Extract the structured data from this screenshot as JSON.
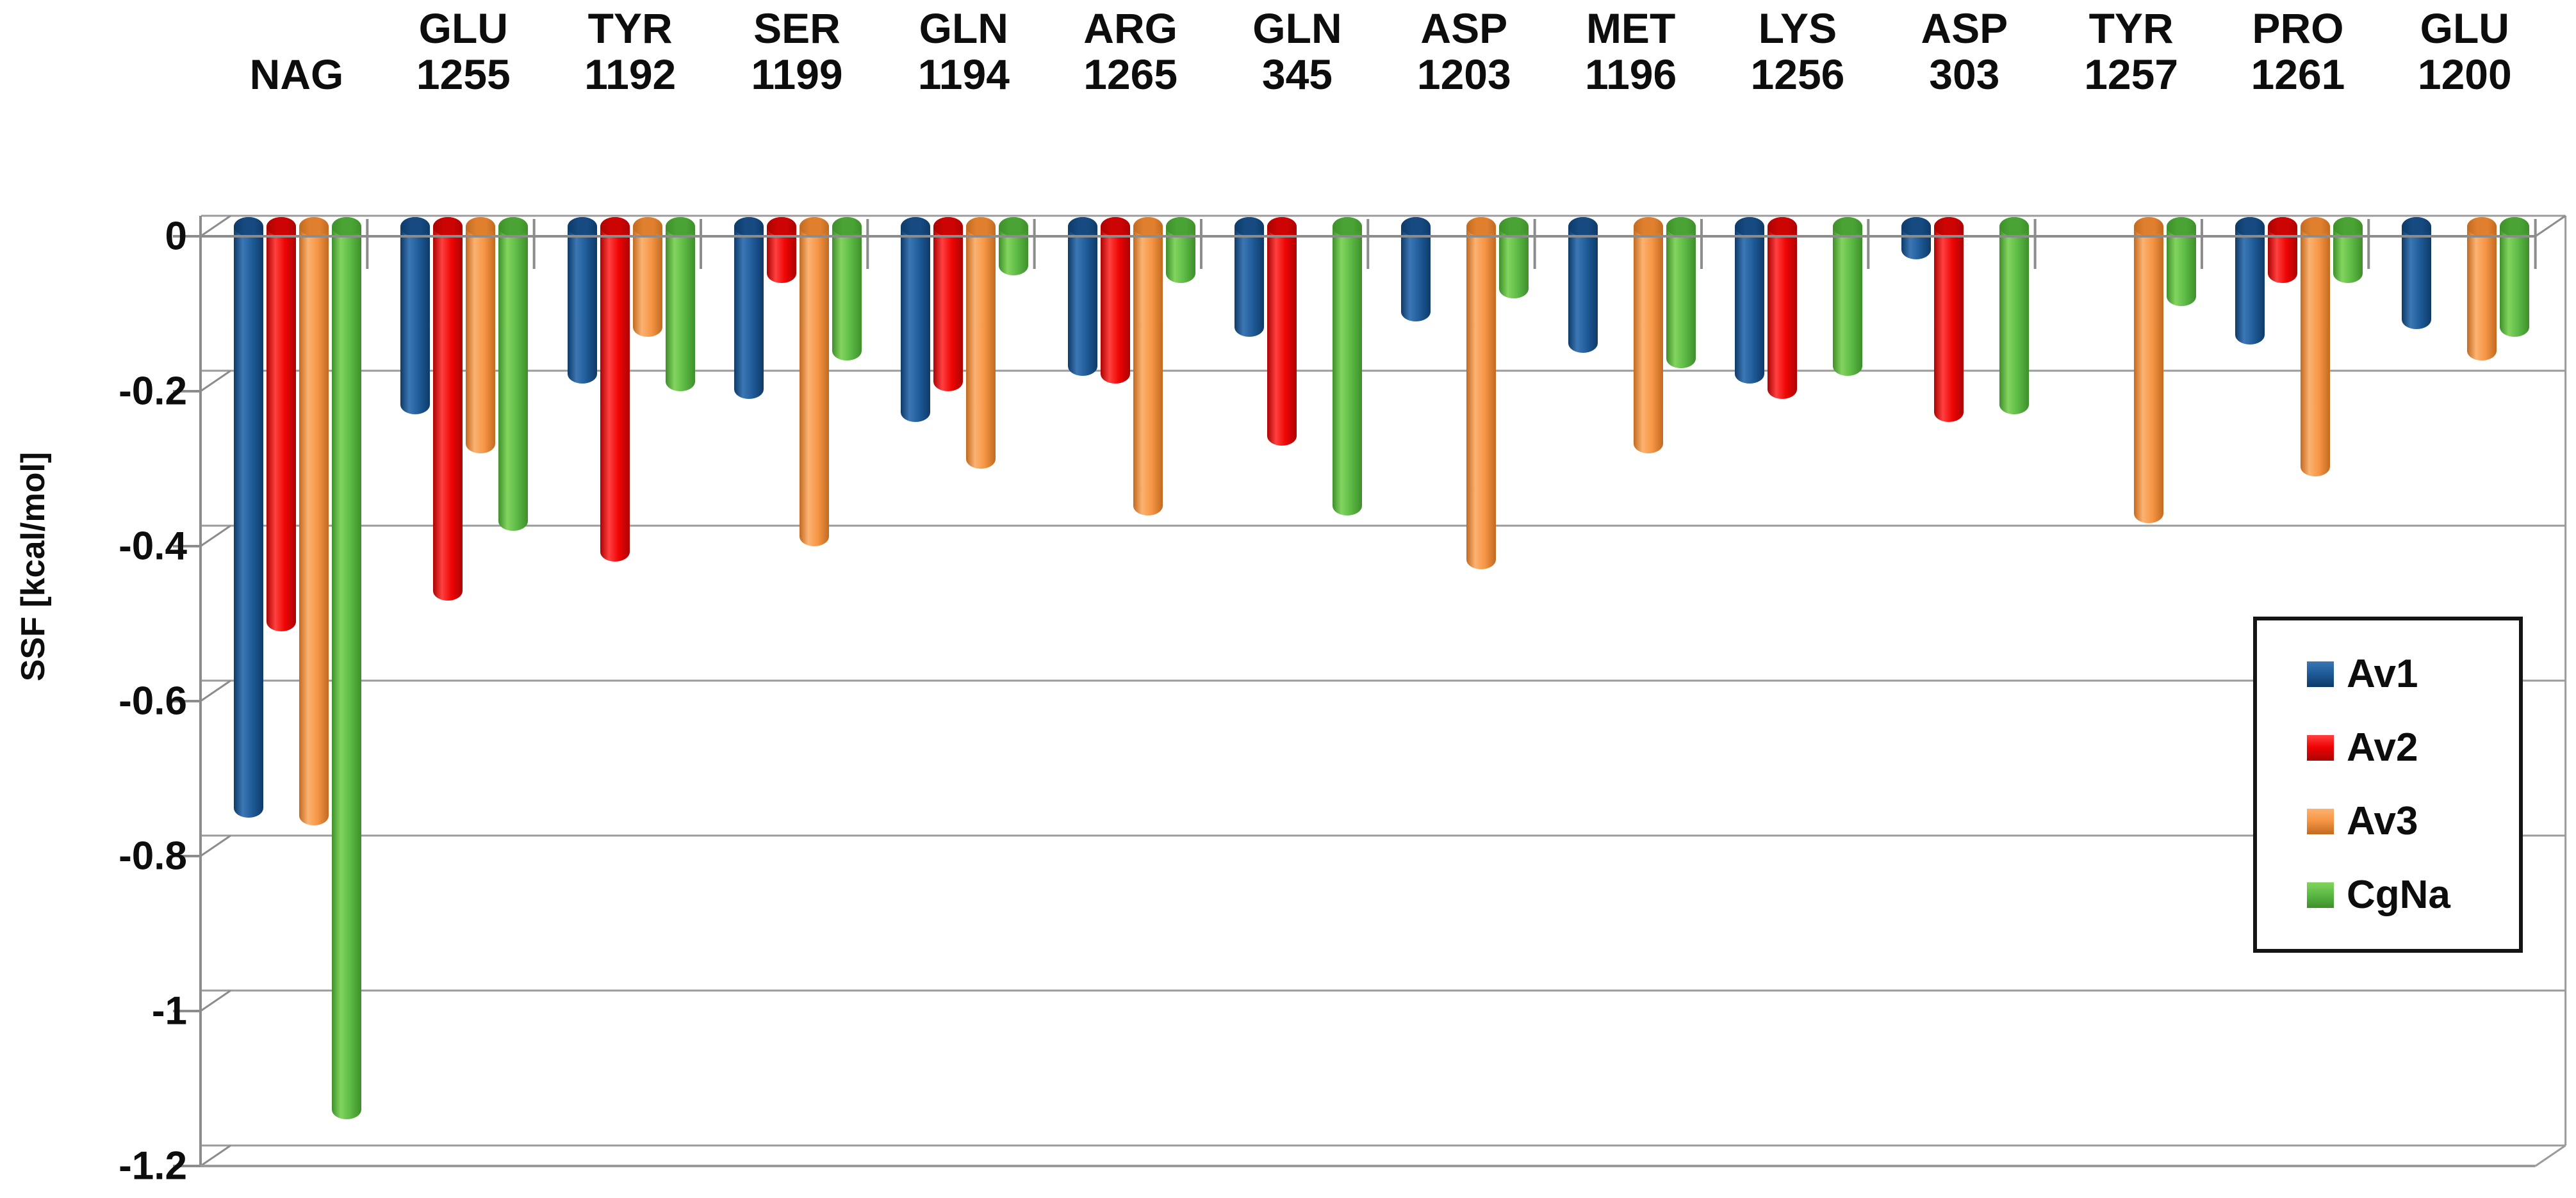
{
  "page": {
    "background": "#FFFFFF"
  },
  "chart_data": {
    "type": "bar",
    "style": "3d-cylinder",
    "title": "",
    "xlabel": "",
    "ylabel": "SSF [kcal/mol]",
    "ylim": [
      -1.2,
      0
    ],
    "grid": true,
    "yticks": [
      0,
      -0.2,
      -0.4,
      -0.6,
      -0.8,
      -1,
      -1.2
    ],
    "ytick_labels": [
      "0",
      "-0.2",
      "-0.4",
      "-0.6",
      "-0.8",
      "-1",
      "-1.2"
    ],
    "categories": [
      {
        "line1": "",
        "line2": "NAG"
      },
      {
        "line1": "GLU",
        "line2": "1255"
      },
      {
        "line1": "TYR",
        "line2": "1192"
      },
      {
        "line1": "SER",
        "line2": "1199"
      },
      {
        "line1": "GLN",
        "line2": "1194"
      },
      {
        "line1": "ARG",
        "line2": "1265"
      },
      {
        "line1": "GLN",
        "line2": "345"
      },
      {
        "line1": "ASP",
        "line2": "1203"
      },
      {
        "line1": "MET",
        "line2": "1196"
      },
      {
        "line1": "LYS",
        "line2": "1256"
      },
      {
        "line1": "ASP",
        "line2": "303"
      },
      {
        "line1": "TYR",
        "line2": "1257"
      },
      {
        "line1": "PRO",
        "line2": "1261"
      },
      {
        "line1": "GLU",
        "line2": "1200"
      }
    ],
    "series": [
      {
        "name": "Av1",
        "color": "#1F5C99",
        "shades": {
          "dark": "#0E3A68",
          "light": "#3C77B5",
          "cap": "#164A80"
        },
        "values": [
          -0.75,
          -0.23,
          -0.19,
          -0.21,
          -0.24,
          -0.18,
          -0.13,
          -0.11,
          -0.15,
          -0.19,
          -0.03,
          null,
          -0.14,
          -0.12
        ]
      },
      {
        "name": "Av2",
        "color": "#F00505",
        "shades": {
          "dark": "#AB0303",
          "light": "#FF4040",
          "cap": "#CC0404"
        },
        "values": [
          -0.51,
          -0.47,
          -0.42,
          -0.06,
          -0.2,
          -0.19,
          -0.27,
          null,
          null,
          -0.21,
          -0.24,
          null,
          -0.06,
          null
        ]
      },
      {
        "name": "Av3",
        "color": "#F79646",
        "shades": {
          "dark": "#C26A20",
          "light": "#FBB271",
          "cap": "#E0802F"
        },
        "values": [
          -0.76,
          -0.28,
          -0.13,
          -0.4,
          -0.3,
          -0.36,
          null,
          -0.43,
          -0.28,
          null,
          null,
          -0.37,
          -0.31,
          -0.16
        ]
      },
      {
        "name": "CgNa",
        "color": "#5DBB46",
        "shades": {
          "dark": "#3E8F2B",
          "light": "#83D45F",
          "cap": "#4AA335"
        },
        "values": [
          -1.14,
          -0.38,
          -0.2,
          -0.16,
          -0.05,
          -0.06,
          -0.36,
          -0.08,
          -0.17,
          -0.18,
          -0.23,
          -0.09,
          -0.06,
          -0.13
        ]
      }
    ],
    "legend": {
      "position": "right-lower",
      "entries": [
        "Av1",
        "Av2",
        "Av3",
        "CgNa"
      ]
    },
    "colors": {
      "gridline": "#9B9B9B",
      "axis": "#8C8C8C",
      "text": "#0D0D0D"
    }
  }
}
